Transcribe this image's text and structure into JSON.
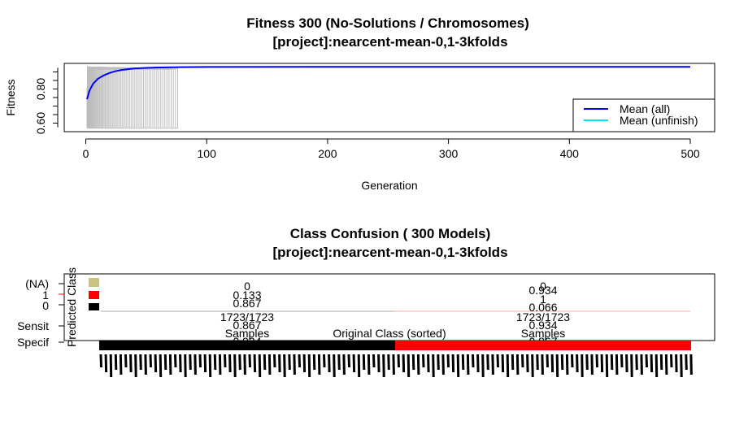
{
  "chart_data": [
    {
      "type": "line",
      "title": "Fitness  300 (No-Solutions / Chromosomes)",
      "subtitle": "[project]:nearcent-mean-0,1-3kfolds",
      "xlabel": "Generation",
      "ylabel": "Fitness",
      "xlim": [
        0,
        520
      ],
      "ylim": [
        0.55,
        0.95
      ],
      "x_ticks": [
        0,
        100,
        200,
        300,
        400,
        500
      ],
      "y_ticks_labeled": [
        0.6,
        0.8
      ],
      "y_tick_labels": [
        "0.60",
        "0.80"
      ],
      "legend": {
        "placement": "bottom-right",
        "entries": [
          {
            "label": "Mean (all)",
            "color": "#0000ff"
          },
          {
            "label": "Mean (unfinish)",
            "color": "#00e5ee"
          }
        ]
      },
      "series": [
        {
          "name": "Mean (all)",
          "color": "#0000ff",
          "x": [
            1,
            3,
            6,
            10,
            15,
            20,
            25,
            30,
            40,
            50,
            60,
            80,
            100,
            200,
            300,
            400,
            500
          ],
          "values": [
            0.74,
            0.79,
            0.83,
            0.86,
            0.88,
            0.895,
            0.905,
            0.912,
            0.92,
            0.924,
            0.926,
            0.928,
            0.929,
            0.93,
            0.93,
            0.93,
            0.93
          ]
        }
      ]
    },
    {
      "type": "bar",
      "title": "Class Confusion ( 300  Models)",
      "subtitle": "[project]:nearcent-mean-0,1-3kfolds",
      "xlabel": "Original Class (sorted)",
      "ylabel": "Predicted Class",
      "y_tick_labels": [
        "(NA)",
        "1",
        "0",
        "Sensit",
        "Specif"
      ],
      "class_colors": {
        "NA": "#c8c37f",
        "1": "#ff0000",
        "0": "#000000"
      },
      "groups": [
        {
          "class": "0",
          "color": "#000000",
          "na": "0",
          "pred1": "0.133",
          "pred0": "0.867",
          "count": "1723/1723",
          "sensit": "0.867",
          "samples": "Samples",
          "specif": "0.934"
        },
        {
          "class": "1",
          "color": "#ff0000",
          "na": "0",
          "pred1": "0.934",
          "pred1_b": "1",
          "pred0": "0.066",
          "count": "1723/1723",
          "sensit": "0.934",
          "samples": "Samples",
          "specif": "0.867"
        }
      ]
    }
  ]
}
